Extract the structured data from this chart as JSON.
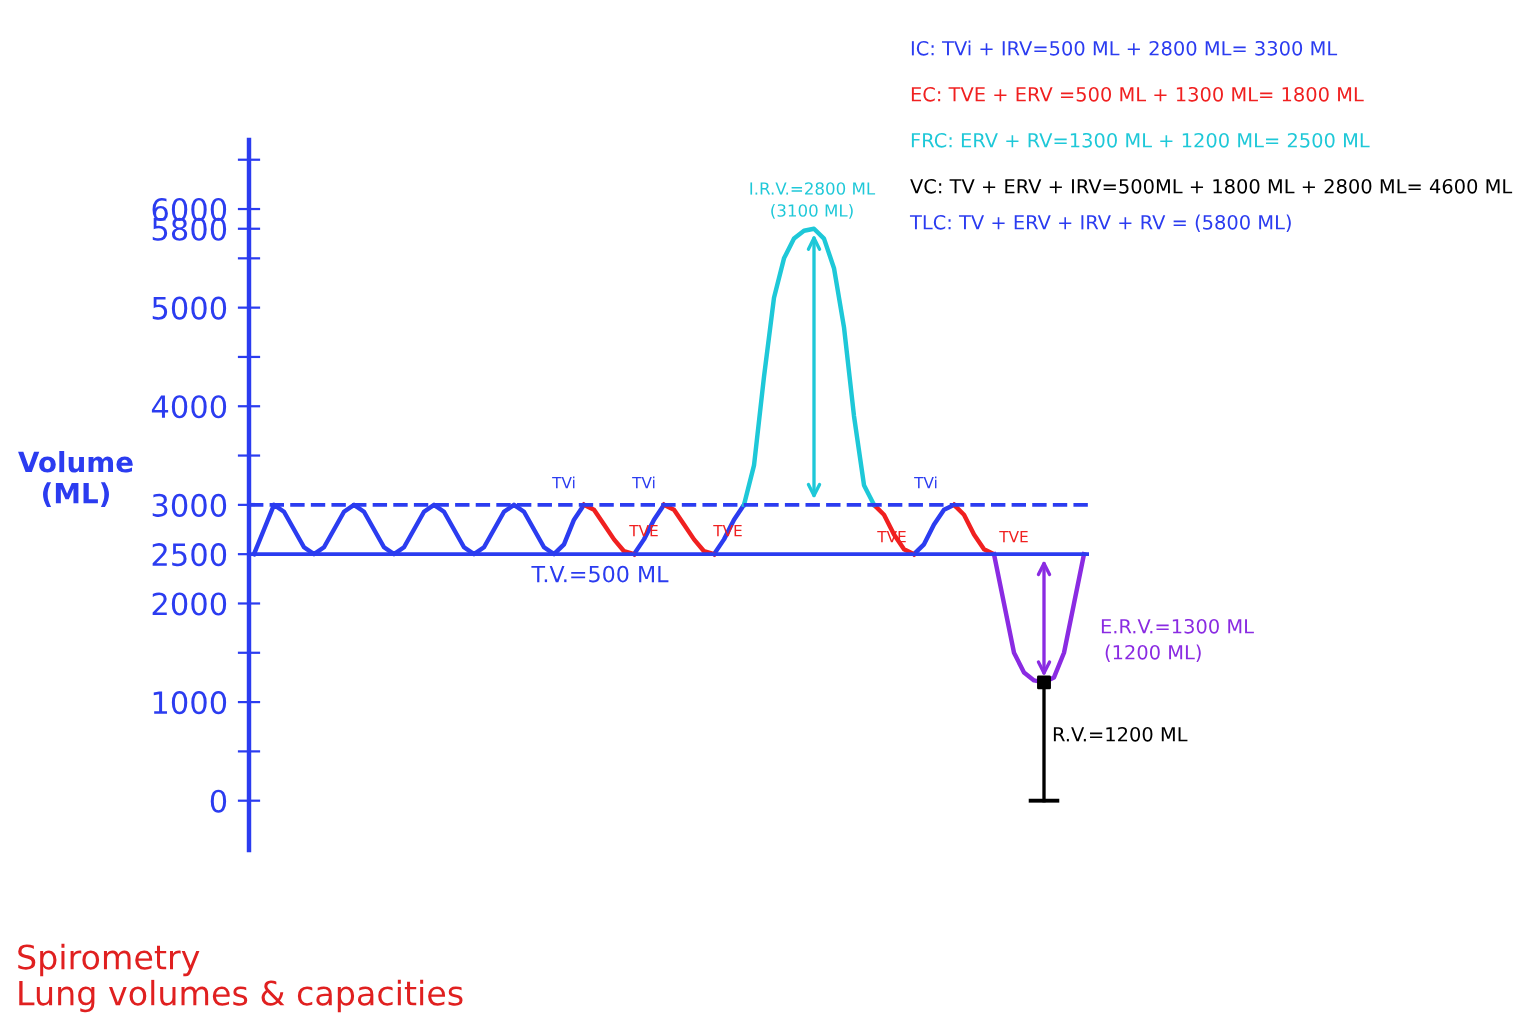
{
  "chart_data": {
    "type": "line",
    "title": "Spirometry",
    "subtitle": "Lung volumes & capacities",
    "ylabel": "Volume\n(ML)",
    "categories": [
      null,
      null,
      null,
      null,
      null,
      null,
      null,
      null,
      null,
      null,
      null,
      null,
      null,
      null,
      null,
      null,
      null,
      null,
      null,
      null,
      null,
      null,
      null,
      null,
      null,
      null,
      null,
      null,
      null,
      null,
      null,
      null,
      null,
      null,
      null,
      null,
      null,
      null,
      null,
      null,
      null,
      null,
      null,
      null,
      null,
      null,
      null,
      null,
      null,
      null,
      null,
      null,
      null,
      null,
      null,
      null,
      null,
      null,
      null,
      null,
      null,
      null,
      null,
      null,
      null,
      null,
      null,
      null,
      null,
      null,
      null,
      null,
      null,
      null,
      null,
      null,
      null,
      null,
      null,
      null,
      null,
      null,
      null,
      null
    ],
    "series": [
      {
        "color": "#2b3cf0",
        "values": [
          2500,
          2750,
          3000,
          2930,
          2750,
          2570,
          2500,
          2570,
          2750,
          2930,
          3000,
          2930,
          2750,
          2570,
          2500,
          2570,
          2750,
          2930,
          3000,
          2930,
          2750,
          2570,
          2500,
          2570,
          2750,
          2930,
          3000,
          2930,
          2750,
          2570,
          2500,
          2600,
          2850,
          3000,
          null,
          null,
          null,
          null,
          2500,
          2650,
          2850,
          3000,
          null,
          null,
          null,
          null,
          2500,
          2650,
          2850,
          3000,
          null,
          null,
          null,
          null,
          null,
          null,
          null,
          null,
          null,
          null,
          null,
          null,
          null,
          null,
          null,
          null,
          2500,
          2600,
          2800,
          2950,
          3000,
          null,
          null,
          null,
          null,
          null,
          null,
          null,
          null,
          null,
          null,
          null,
          null,
          null
        ]
      },
      {
        "color": "#f02020",
        "values": [
          null,
          null,
          null,
          null,
          null,
          null,
          null,
          null,
          null,
          null,
          null,
          null,
          null,
          null,
          null,
          null,
          null,
          null,
          null,
          null,
          null,
          null,
          null,
          null,
          null,
          null,
          null,
          null,
          null,
          null,
          null,
          null,
          null,
          3000,
          2950,
          2800,
          2650,
          2530,
          2500,
          null,
          null,
          3000,
          2950,
          2800,
          2650,
          2530,
          2500,
          null,
          null,
          null,
          null,
          null,
          null,
          null,
          null,
          null,
          null,
          null,
          null,
          null,
          null,
          null,
          3000,
          2900,
          2700,
          2550,
          2500,
          null,
          null,
          null,
          3000,
          2900,
          2700,
          2550,
          2500,
          null,
          null,
          null,
          null,
          null,
          null,
          null,
          null,
          null
        ]
      },
      {
        "color": "#1ec8d8",
        "values": [
          null,
          null,
          null,
          null,
          null,
          null,
          null,
          null,
          null,
          null,
          null,
          null,
          null,
          null,
          null,
          null,
          null,
          null,
          null,
          null,
          null,
          null,
          null,
          null,
          null,
          null,
          null,
          null,
          null,
          null,
          null,
          null,
          null,
          null,
          null,
          null,
          null,
          null,
          null,
          null,
          null,
          null,
          null,
          null,
          null,
          null,
          null,
          null,
          null,
          3000,
          3400,
          4300,
          5100,
          5500,
          5700,
          5780,
          5800,
          5700,
          5400,
          4800,
          3900,
          3200,
          3000,
          null,
          null,
          null,
          null,
          null,
          null,
          null,
          null,
          null,
          null,
          null,
          null,
          null,
          null,
          null,
          null,
          null,
          null,
          null,
          null,
          null
        ]
      },
      {
        "color": "#8a2be2",
        "values": [
          null,
          null,
          null,
          null,
          null,
          null,
          null,
          null,
          null,
          null,
          null,
          null,
          null,
          null,
          null,
          null,
          null,
          null,
          null,
          null,
          null,
          null,
          null,
          null,
          null,
          null,
          null,
          null,
          null,
          null,
          null,
          null,
          null,
          null,
          null,
          null,
          null,
          null,
          null,
          null,
          null,
          null,
          null,
          null,
          null,
          null,
          null,
          null,
          null,
          null,
          null,
          null,
          null,
          null,
          null,
          null,
          null,
          null,
          null,
          null,
          null,
          null,
          null,
          null,
          null,
          null,
          null,
          null,
          null,
          null,
          null,
          null,
          null,
          null,
          2500,
          2000,
          1500,
          1300,
          1220,
          1200,
          1250,
          1500,
          2000,
          2500
        ]
      },
      {
        "type": "scatter",
        "color": "#000000",
        "marker": "square",
        "values": [
          null,
          null,
          null,
          null,
          null,
          null,
          null,
          null,
          null,
          null,
          null,
          null,
          null,
          null,
          null,
          null,
          null,
          null,
          null,
          null,
          null,
          null,
          null,
          null,
          null,
          null,
          null,
          null,
          null,
          null,
          null,
          null,
          null,
          null,
          null,
          null,
          null,
          null,
          null,
          null,
          null,
          null,
          null,
          null,
          null,
          null,
          null,
          null,
          null,
          null,
          null,
          null,
          null,
          null,
          null,
          null,
          null,
          null,
          null,
          null,
          null,
          null,
          null,
          null,
          null,
          null,
          null,
          null,
          null,
          null,
          null,
          null,
          null,
          null,
          null,
          null,
          null,
          null,
          null,
          1200,
          null,
          null,
          null,
          null
        ],
        "errors": [
          null,
          null,
          null,
          null,
          null,
          null,
          null,
          null,
          null,
          null,
          null,
          null,
          null,
          null,
          null,
          null,
          null,
          null,
          null,
          null,
          null,
          null,
          null,
          null,
          null,
          null,
          null,
          null,
          null,
          null,
          null,
          null,
          null,
          null,
          null,
          null,
          null,
          null,
          null,
          null,
          null,
          null,
          null,
          null,
          null,
          null,
          null,
          null,
          null,
          null,
          null,
          null,
          null,
          null,
          null,
          null,
          null,
          null,
          null,
          null,
          null,
          null,
          null,
          null,
          null,
          null,
          null,
          null,
          null,
          null,
          null,
          null,
          null,
          null,
          null,
          null,
          null,
          null,
          null,
          [
            1200,
            0
          ],
          null,
          null,
          null,
          null
        ]
      }
    ],
    "ylim": [
      -500,
      6700
    ],
    "yticks": [
      0,
      {
        "value": 500,
        "label": null
      },
      1000,
      {
        "value": 1500,
        "label": null
      },
      2000,
      2500,
      3000,
      {
        "value": 3500,
        "label": null
      },
      4000,
      {
        "value": 4500,
        "label": null
      },
      5000,
      {
        "value": 5500,
        "label": null
      },
      5800,
      6000,
      {
        "value": 6500,
        "label": null
      }
    ],
    "ref_lines": [
      {
        "axis": "y",
        "value": 2500,
        "label": null,
        "color": "#2b3cf0",
        "line_style": "solid"
      },
      {
        "axis": "y",
        "value": 3000,
        "label": null,
        "color": "#2b3cf0",
        "line_style": "dashed"
      }
    ],
    "tick_labels": "y",
    "grid": false,
    "legend": false,
    "marker": "none",
    "line_style": "solid",
    "annotations": [
      "T.V.=500 ML",
      "TVi",
      "TVE",
      "TVi",
      "TVE",
      "TVE",
      "TVi",
      "TVE",
      "I.R.V.=2800 ML",
      "(3100 ML)",
      "E.R.V.=1300 ML",
      "(1200 ML)",
      "R.V.=1200 ML",
      "IC: TVi + IRV=500 ML + 2800 ML= 3300 ML",
      "EC: TVE + ERV =500 ML + 1300 ML= 1800 ML",
      "FRC: ERV + RV=1300 ML + 1200 ML= 2500 ML",
      "VC: TV + ERV + IRV=500ML + 1800 ML + 2800 ML= 4600 ML",
      "TLC: TV + ERV + IRV + RV = (5800 ML)"
    ]
  }
}
